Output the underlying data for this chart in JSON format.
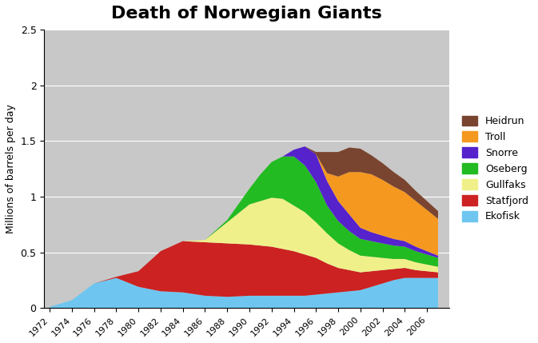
{
  "title": "Death of Norwegian Giants",
  "ylabel": "Millions of barrels per day",
  "years": [
    1972,
    1974,
    1976,
    1978,
    1980,
    1982,
    1984,
    1986,
    1988,
    1990,
    1991,
    1992,
    1993,
    1994,
    1995,
    1996,
    1997,
    1998,
    1999,
    2000,
    2001,
    2002,
    2003,
    2004,
    2005,
    2006,
    2007
  ],
  "ekofisk": [
    0.01,
    0.07,
    0.22,
    0.27,
    0.19,
    0.15,
    0.14,
    0.11,
    0.1,
    0.11,
    0.11,
    0.11,
    0.11,
    0.11,
    0.11,
    0.12,
    0.13,
    0.14,
    0.15,
    0.16,
    0.19,
    0.22,
    0.25,
    0.27,
    0.27,
    0.27,
    0.27
  ],
  "statfjord": [
    0.0,
    0.0,
    0.0,
    0.01,
    0.14,
    0.36,
    0.46,
    0.48,
    0.48,
    0.46,
    0.45,
    0.44,
    0.42,
    0.4,
    0.37,
    0.33,
    0.27,
    0.22,
    0.19,
    0.16,
    0.14,
    0.12,
    0.1,
    0.09,
    0.07,
    0.06,
    0.05
  ],
  "gullfaks": [
    0.0,
    0.0,
    0.0,
    0.0,
    0.0,
    0.0,
    0.0,
    0.02,
    0.19,
    0.36,
    0.4,
    0.44,
    0.45,
    0.41,
    0.38,
    0.32,
    0.27,
    0.22,
    0.18,
    0.15,
    0.13,
    0.11,
    0.09,
    0.08,
    0.07,
    0.06,
    0.05
  ],
  "oseberg": [
    0.0,
    0.0,
    0.0,
    0.0,
    0.0,
    0.0,
    0.0,
    0.0,
    0.02,
    0.14,
    0.24,
    0.32,
    0.38,
    0.44,
    0.42,
    0.36,
    0.25,
    0.2,
    0.17,
    0.15,
    0.14,
    0.13,
    0.12,
    0.11,
    0.1,
    0.09,
    0.08
  ],
  "snorre": [
    0.0,
    0.0,
    0.0,
    0.0,
    0.0,
    0.0,
    0.0,
    0.0,
    0.0,
    0.0,
    0.0,
    0.0,
    0.0,
    0.06,
    0.17,
    0.25,
    0.22,
    0.18,
    0.15,
    0.1,
    0.08,
    0.07,
    0.06,
    0.05,
    0.04,
    0.03,
    0.02
  ],
  "troll": [
    0.0,
    0.0,
    0.0,
    0.0,
    0.0,
    0.0,
    0.0,
    0.0,
    0.0,
    0.0,
    0.0,
    0.0,
    0.0,
    0.0,
    0.0,
    0.0,
    0.07,
    0.22,
    0.38,
    0.5,
    0.52,
    0.5,
    0.47,
    0.44,
    0.41,
    0.37,
    0.33
  ],
  "heidrun": [
    0.0,
    0.0,
    0.0,
    0.0,
    0.0,
    0.0,
    0.0,
    0.0,
    0.0,
    0.0,
    0.0,
    0.0,
    0.0,
    0.0,
    0.0,
    0.02,
    0.19,
    0.22,
    0.22,
    0.21,
    0.17,
    0.15,
    0.13,
    0.11,
    0.09,
    0.08,
    0.07
  ],
  "colors": {
    "ekofisk": "#6ec6f0",
    "statfjord": "#cc2222",
    "gullfaks": "#f0f08a",
    "oseberg": "#22bb22",
    "snorre": "#5522cc",
    "troll": "#f59820",
    "heidrun": "#7a4530"
  },
  "legend_labels": [
    "Heidrun",
    "Troll",
    "Snorre",
    "Oseberg",
    "Gullfaks",
    "Statfjord",
    "Ekofisk"
  ],
  "ylim": [
    0,
    2.5
  ],
  "xlim": [
    1971.5,
    2008
  ],
  "background_color": "#c8c8c8",
  "title_fontsize": 16,
  "grid_color": "#ffffff"
}
